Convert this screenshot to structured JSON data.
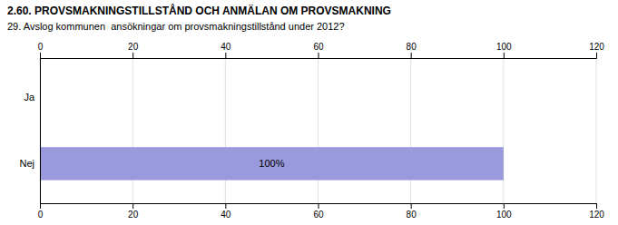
{
  "chart_data": {
    "type": "bar",
    "orientation": "horizontal",
    "title": "2.60. PROVSMAKNINGSTILLSTÅND OCH ANMÄLAN OM PROVSMAKNING",
    "subtitle": "29. Avslog kommunen  ansökningar om provsmakningstillstånd under 2012?",
    "categories": [
      "Ja",
      "Nej"
    ],
    "values": [
      0,
      100
    ],
    "data_labels": true,
    "value_labels": [
      null,
      "100%"
    ],
    "color": "#9999dd",
    "xlim": [
      0,
      120
    ],
    "xticks": [
      0,
      20,
      40,
      60,
      80,
      100,
      120
    ],
    "grid": true
  }
}
